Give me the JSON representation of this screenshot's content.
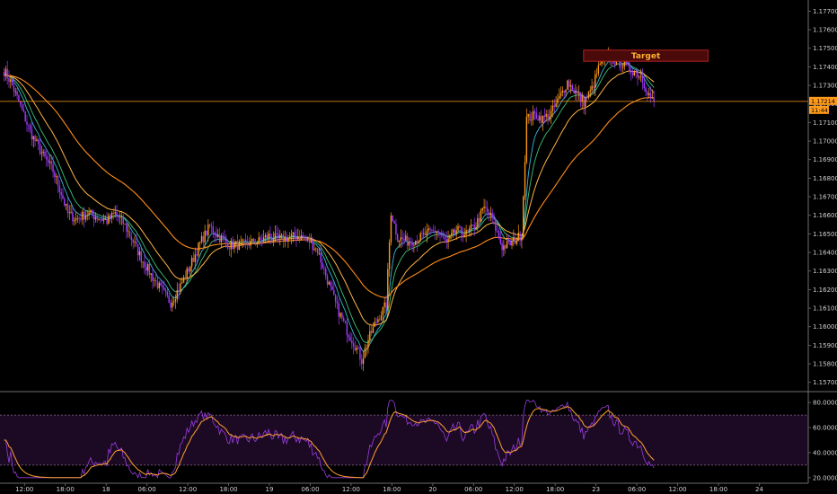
{
  "chart_data": {
    "type": "candlestick",
    "price_panel": {
      "y_ticks": [
        1.157,
        1.158,
        1.159,
        1.16,
        1.161,
        1.162,
        1.163,
        1.164,
        1.165,
        1.166,
        1.167,
        1.168,
        1.169,
        1.17,
        1.171,
        1.172,
        1.173,
        1.174,
        1.175,
        1.176,
        1.177
      ],
      "y_tick_labels": [
        "1.15700",
        "1.15800",
        "1.15900",
        "1.16000",
        "1.16100",
        "1.16200",
        "1.16300",
        "1.16400",
        "1.16500",
        "1.16600",
        "1.16700",
        "1.16800",
        "1.16900",
        "1.17000",
        "1.17100",
        "1.17200",
        "1.17300",
        "1.17400",
        "1.17500",
        "1.17600",
        "1.17700"
      ],
      "ylim": [
        1.1566,
        1.1776
      ],
      "current_price": 1.17214,
      "current_price_label": "1.17214",
      "countdown_label": "11:44",
      "target": {
        "label": "Target",
        "from": 0.722,
        "to": 0.876,
        "y_low": 1.1743,
        "y_high": 1.1749
      }
    },
    "path_points": [
      [
        0,
        1.1738
      ],
      [
        0.8,
        1.1732
      ],
      [
        1.8,
        1.1721
      ],
      [
        3.2,
        1.1705
      ],
      [
        4.8,
        1.1692
      ],
      [
        6,
        1.1684
      ],
      [
        7,
        1.1672
      ],
      [
        7.8,
        1.1661
      ],
      [
        8.8,
        1.1658
      ],
      [
        10.2,
        1.1661
      ],
      [
        11.4,
        1.1659
      ],
      [
        12.6,
        1.1657
      ],
      [
        13.6,
        1.1661
      ],
      [
        14.6,
        1.1656
      ],
      [
        15.8,
        1.1646
      ],
      [
        16.8,
        1.1637
      ],
      [
        18,
        1.1628
      ],
      [
        19.2,
        1.162
      ],
      [
        20.4,
        1.1613
      ],
      [
        21.6,
        1.1622
      ],
      [
        22.8,
        1.1633
      ],
      [
        24,
        1.1645
      ],
      [
        25.2,
        1.1654
      ],
      [
        26.4,
        1.1648
      ],
      [
        27.6,
        1.1644
      ],
      [
        28.8,
        1.1644
      ],
      [
        30,
        1.1645
      ],
      [
        31.2,
        1.1646
      ],
      [
        32.4,
        1.1649
      ],
      [
        33.6,
        1.1647
      ],
      [
        34.8,
        1.1648
      ],
      [
        36,
        1.1649
      ],
      [
        37.2,
        1.1647
      ],
      [
        38.4,
        1.1641
      ],
      [
        39.6,
        1.1625
      ],
      [
        40.8,
        1.161
      ],
      [
        42,
        1.1598
      ],
      [
        43,
        1.159
      ],
      [
        43.8,
        1.1582
      ],
      [
        44.6,
        1.1593
      ],
      [
        45.6,
        1.1603
      ],
      [
        46.8,
        1.1612
      ],
      [
        47.4,
        1.1662
      ],
      [
        48.2,
        1.1648
      ],
      [
        49.4,
        1.1646
      ],
      [
        50.6,
        1.1647
      ],
      [
        51.8,
        1.165
      ],
      [
        53,
        1.1652
      ],
      [
        54.2,
        1.1645
      ],
      [
        55.4,
        1.1652
      ],
      [
        56.6,
        1.165
      ],
      [
        57.8,
        1.1655
      ],
      [
        58.8,
        1.1664
      ],
      [
        59.8,
        1.1658
      ],
      [
        61,
        1.1643
      ],
      [
        62.2,
        1.1645
      ],
      [
        63.4,
        1.165
      ],
      [
        64,
        1.1712
      ],
      [
        65,
        1.1714
      ],
      [
        66,
        1.1712
      ],
      [
        67,
        1.1715
      ],
      [
        68,
        1.1723
      ],
      [
        69,
        1.1732
      ],
      [
        70,
        1.1726
      ],
      [
        71,
        1.1721
      ],
      [
        72,
        1.1728
      ],
      [
        73,
        1.1742
      ],
      [
        74,
        1.1745
      ],
      [
        75,
        1.1743
      ],
      [
        76,
        1.1741
      ],
      [
        77,
        1.1738
      ],
      [
        78,
        1.1735
      ],
      [
        79,
        1.1725
      ],
      [
        79.6,
        1.172
      ]
    ],
    "x_ticks": [
      {
        "label": "12:00",
        "i": 2.5
      },
      {
        "label": "18:00",
        "i": 7.5
      },
      {
        "label": "18",
        "i": 12.5
      },
      {
        "label": "06:00",
        "i": 17.5
      },
      {
        "label": "12:00",
        "i": 22.5
      },
      {
        "label": "18:00",
        "i": 27.5
      },
      {
        "label": "19",
        "i": 32.5
      },
      {
        "label": "06:00",
        "i": 37.5
      },
      {
        "label": "12:00",
        "i": 42.5
      },
      {
        "label": "18:00",
        "i": 47.5
      },
      {
        "label": "20",
        "i": 52.5
      },
      {
        "label": "06:00",
        "i": 57.5
      },
      {
        "label": "12:00",
        "i": 62.5
      },
      {
        "label": "18:00",
        "i": 67.5
      },
      {
        "label": "23",
        "i": 72.5
      },
      {
        "label": "06:00",
        "i": 77.5
      },
      {
        "label": "12:00",
        "i": 82.5
      },
      {
        "label": "18:00",
        "i": 87.5
      },
      {
        "label": "24",
        "i": 92.5
      }
    ],
    "x_range": [
      -0.5,
      98.5
    ],
    "oscillator": {
      "y_ticks": [
        20,
        40,
        60,
        80
      ],
      "y_tick_labels": [
        "20.0000",
        "40.0000",
        "60.0000",
        "80.0000"
      ],
      "ylim": [
        17,
        88
      ],
      "upper_level": 70,
      "lower_level": 30
    },
    "colors": {
      "candle_up": "#ff9a1a",
      "candle_down": "#a23cff",
      "ma_fast": "#35b6d8",
      "ma_mid": "#3cc276",
      "ma_slow": "#ffb347",
      "ma_long": "#ff8c1a",
      "oscillator_line": "#9a3ce0",
      "oscillator_signal": "#ffa030",
      "price_line": "#ff9a1a",
      "target_box": "#4a0a0a",
      "target_border": "#b32020"
    }
  }
}
